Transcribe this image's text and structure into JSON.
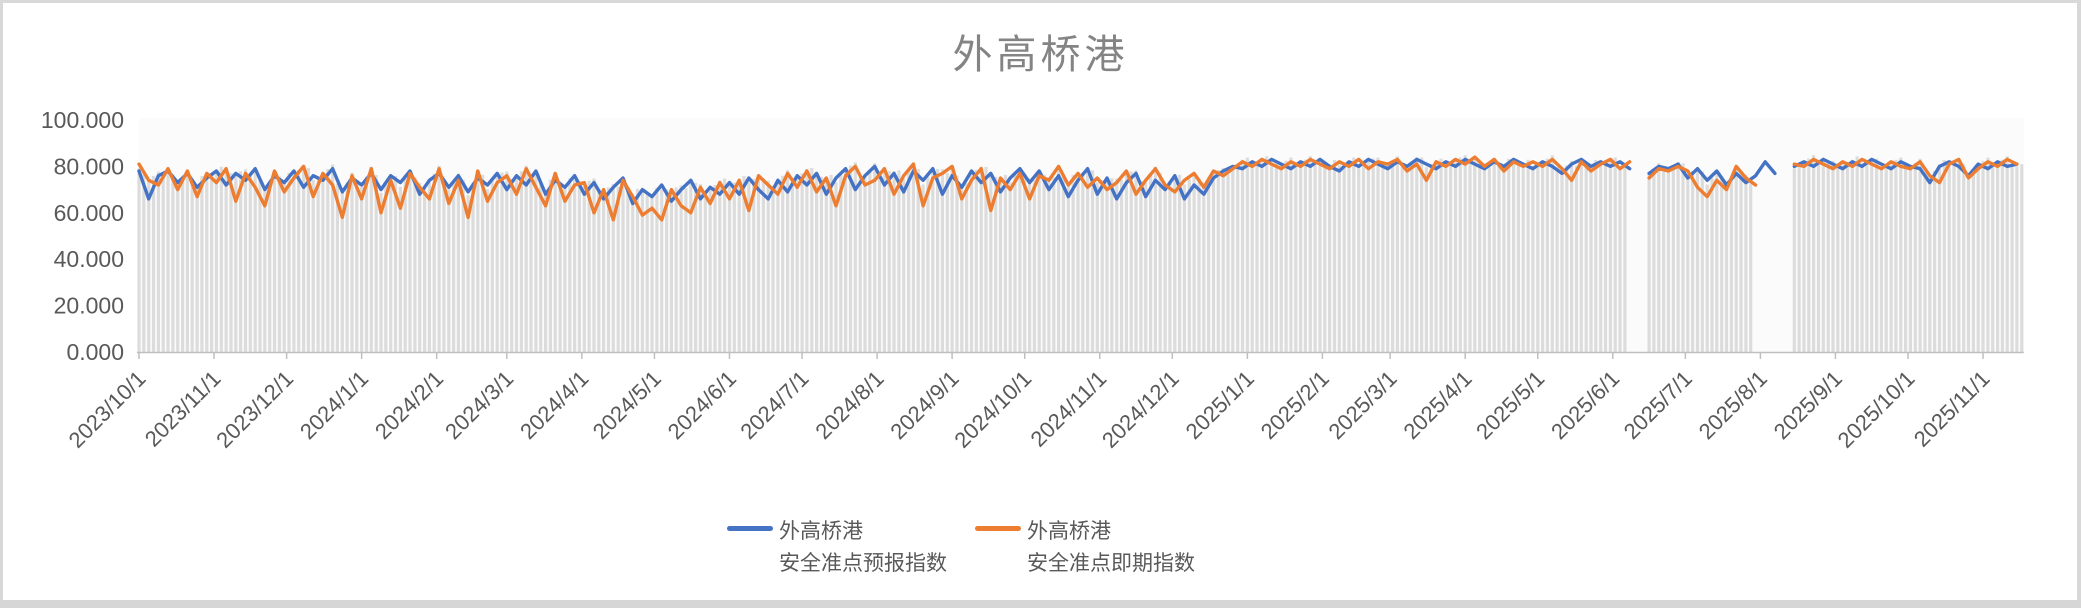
{
  "window": {
    "frame_border_color": "#d8d8d8",
    "background": "#ffffff"
  },
  "title": {
    "text": "外高桥港",
    "color": "#848484"
  },
  "legend": {
    "entries": [
      {
        "line1": "外高桥港",
        "line2": "安全准点预报指数",
        "color": "#4472C4"
      },
      {
        "line1": "外高桥港",
        "line2": "安全准点即期指数",
        "color": "#ED7D31"
      }
    ]
  },
  "chart_data": {
    "type": "line",
    "title": "外高桥港",
    "x_start_date": "2023/10/1",
    "x_end_date": "2025/11/17",
    "x_step_days": 4,
    "total_days": 778,
    "ylim": [
      0,
      100
    ],
    "y_ticks": [
      {
        "value": 0,
        "label": "0.000"
      },
      {
        "value": 20,
        "label": "20.000"
      },
      {
        "value": 40,
        "label": "40.000"
      },
      {
        "value": 60,
        "label": "60.000"
      },
      {
        "value": 80,
        "label": "80.000"
      },
      {
        "value": 100,
        "label": "100.000"
      }
    ],
    "x_tick_labels": [
      "2023/10/1",
      "2023/11/1",
      "2023/12/1",
      "2024/1/1",
      "2024/2/1",
      "2024/3/1",
      "2024/4/1",
      "2024/5/1",
      "2024/6/1",
      "2024/7/1",
      "2024/8/1",
      "2024/9/1",
      "2024/10/1",
      "2024/11/1",
      "2024/12/1",
      "2025/1/1",
      "2025/2/1",
      "2025/3/1",
      "2025/4/1",
      "2025/5/1",
      "2025/6/1",
      "2025/7/1",
      "2025/8/1",
      "2025/9/1",
      "2025/10/1",
      "2025/11/1"
    ],
    "x_tick_day_offsets": [
      0,
      31,
      61,
      92,
      123,
      152,
      183,
      213,
      244,
      274,
      305,
      336,
      366,
      397,
      427,
      458,
      489,
      517,
      548,
      578,
      609,
      639,
      670,
      701,
      731,
      762
    ],
    "grid": "off",
    "legend_position": "bottom",
    "series": [
      {
        "name": "外高桥港 安全准点预报指数",
        "color": "#4472C4",
        "values": [
          78,
          66,
          76,
          78,
          73,
          77,
          71,
          75,
          78,
          72,
          77,
          74,
          79,
          70,
          76,
          73,
          78,
          71,
          76,
          74,
          79,
          69,
          75,
          72,
          77,
          70,
          76,
          73,
          78,
          68,
          74,
          77,
          71,
          76,
          69,
          75,
          72,
          77,
          70,
          76,
          72,
          78,
          68,
          74,
          71,
          76,
          68,
          73,
          66,
          71,
          75,
          64,
          70,
          67,
          72,
          65,
          70,
          74,
          66,
          71,
          68,
          73,
          68,
          75,
          70,
          66,
          74,
          69,
          76,
          72,
          77,
          68,
          75,
          79,
          70,
          76,
          80,
          72,
          77,
          69,
          78,
          74,
          79,
          68,
          76,
          71,
          78,
          73,
          77,
          69,
          75,
          79,
          73,
          78,
          70,
          76,
          67,
          74,
          79,
          68,
          75,
          66,
          73,
          77,
          67,
          74,
          70,
          76,
          66,
          72,
          68,
          75,
          78,
          80,
          79,
          82,
          80,
          83,
          81,
          79,
          82,
          80,
          83,
          80,
          78,
          82,
          80,
          83,
          81,
          79,
          82,
          80,
          83,
          81,
          79,
          82,
          80,
          83,
          81,
          79,
          82,
          80,
          83,
          81,
          79,
          82,
          80,
          77,
          81,
          83,
          80,
          82,
          80,
          82,
          79,
          null,
          77,
          80,
          79,
          81,
          75,
          79,
          74,
          78,
          72,
          77,
          73,
          76,
          82,
          77,
          null,
          80,
          82,
          80,
          83,
          81,
          79,
          82,
          80,
          83,
          81,
          79,
          82,
          80,
          79,
          73,
          80,
          82,
          80,
          76,
          81,
          79,
          82,
          80,
          81
        ]
      },
      {
        "name": "外高桥港 安全准点即期指数",
        "color": "#ED7D31",
        "values": [
          81,
          74,
          72,
          79,
          70,
          78,
          67,
          77,
          73,
          79,
          65,
          77,
          71,
          63,
          78,
          69,
          75,
          80,
          67,
          77,
          72,
          58,
          76,
          66,
          79,
          60,
          74,
          62,
          77,
          71,
          66,
          79,
          64,
          74,
          58,
          78,
          65,
          73,
          76,
          68,
          79,
          71,
          63,
          77,
          65,
          72,
          73,
          60,
          70,
          57,
          74,
          67,
          59,
          62,
          57,
          70,
          63,
          60,
          71,
          64,
          73,
          66,
          74,
          61,
          76,
          72,
          68,
          77,
          71,
          78,
          69,
          75,
          63,
          76,
          80,
          72,
          74,
          79,
          68,
          76,
          81,
          63,
          75,
          77,
          80,
          66,
          74,
          79,
          61,
          75,
          70,
          77,
          66,
          76,
          74,
          80,
          72,
          77,
          71,
          75,
          70,
          73,
          78,
          68,
          74,
          79,
          72,
          69,
          74,
          77,
          71,
          78,
          76,
          79,
          82,
          80,
          83,
          81,
          79,
          82,
          80,
          83,
          81,
          79,
          82,
          80,
          83,
          79,
          82,
          81,
          83,
          78,
          81,
          74,
          82,
          80,
          83,
          81,
          84,
          80,
          83,
          78,
          82,
          80,
          82,
          80,
          83,
          79,
          74,
          82,
          78,
          81,
          83,
          79,
          82,
          null,
          75,
          79,
          78,
          80,
          78,
          71,
          67,
          74,
          70,
          80,
          75,
          72,
          null,
          null,
          null,
          81,
          80,
          83,
          81,
          79,
          82,
          80,
          83,
          81,
          79,
          82,
          80,
          79,
          82,
          76,
          73,
          81,
          83,
          75,
          79,
          82,
          80,
          83,
          81
        ]
      }
    ],
    "background_columns": {
      "description": "dense light-gray daily columns whose tops follow the index lines",
      "color": "#dcdcdc",
      "missing_sample_indexes": [
        155,
        168,
        169,
        170
      ]
    },
    "axis_colors": {
      "axis_line": "#bfbfbf",
      "tick_text": "#595959"
    }
  }
}
